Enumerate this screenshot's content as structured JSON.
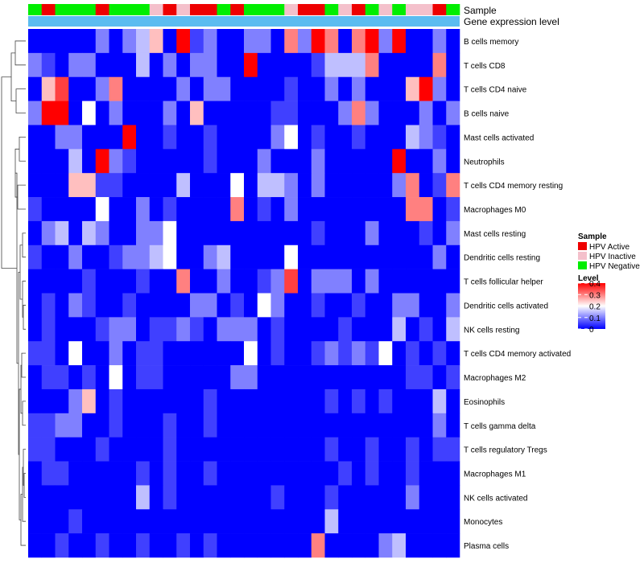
{
  "chart_data": {
    "type": "heatmap",
    "title": "",
    "annotation_labels": {
      "top": "Sample",
      "bottom": "Gene expression level"
    },
    "rows": [
      "B cells memory",
      "T cells CD8",
      "T cells CD4 naive",
      "B cells naive",
      "Mast cells activated",
      "Neutrophils",
      "T cells CD4 memory resting",
      "Macrophages M0",
      "Mast cells resting",
      "Dendritic cells resting",
      "T cells follicular helper",
      "Dendritic cells activated",
      "NK cells resting",
      "T cells CD4 memory activated",
      "Macrophages M2",
      "Eosinophils",
      "T cells gamma delta",
      "T cells regulatory  Tregs",
      "Macrophages M1",
      "NK cells activated",
      "Monocytes",
      "Plasma cells"
    ],
    "sample_groups": [
      "Negative",
      "Active",
      "Negative",
      "Negative",
      "Negative",
      "Active",
      "Negative",
      "Negative",
      "Negative",
      "Inactive",
      "Active",
      "Inactive",
      "Active",
      "Active",
      "Negative",
      "Active",
      "Negative",
      "Negative",
      "Negative",
      "Inactive",
      "Active",
      "Active",
      "Negative",
      "Inactive",
      "Active",
      "Negative",
      "Inactive",
      "Negative",
      "Inactive",
      "Inactive",
      "Active",
      "Negative"
    ],
    "group_colors": {
      "Active": "#ee0000",
      "Inactive": "#f4c0cb",
      "Negative": "#00ee00"
    },
    "expression_bar_color": "#5bbcf0",
    "values": [
      [
        0,
        0,
        0,
        0,
        0,
        0.1,
        0,
        0.1,
        0.15,
        0.25,
        0,
        0.4,
        0.05,
        0.1,
        0,
        0,
        0.1,
        0.1,
        0,
        0.3,
        0.1,
        0.4,
        0.3,
        0,
        0.3,
        0.4,
        0.1,
        0.4,
        0,
        0,
        0.1,
        0
      ],
      [
        0.1,
        0.05,
        0,
        0.1,
        0.1,
        0,
        0,
        0,
        0.15,
        0,
        0.1,
        0,
        0.1,
        0.1,
        0,
        0,
        0.4,
        0,
        0,
        0,
        0,
        0.05,
        0.15,
        0.15,
        0.15,
        0.3,
        0,
        0,
        0,
        0,
        0.3,
        0
      ],
      [
        0,
        0.25,
        0.35,
        0,
        0,
        0.1,
        0.3,
        0,
        0,
        0,
        0,
        0.1,
        0,
        0.1,
        0.1,
        0,
        0,
        0,
        0,
        0.05,
        0,
        0,
        0.1,
        0,
        0.1,
        0,
        0,
        0,
        0.25,
        0.4,
        0.1,
        0
      ],
      [
        0.1,
        0.4,
        0.4,
        0,
        0.2,
        0,
        0.1,
        0,
        0,
        0,
        0.1,
        0,
        0.25,
        0,
        0,
        0,
        0,
        0,
        0.05,
        0.05,
        0,
        0,
        0,
        0.1,
        0.3,
        0.1,
        0,
        0,
        0,
        0.1,
        0,
        0.1
      ],
      [
        0,
        0,
        0.1,
        0.1,
        0,
        0,
        0,
        0.4,
        0,
        0,
        0.05,
        0,
        0,
        0.05,
        0,
        0,
        0,
        0,
        0.1,
        0.2,
        0,
        0.05,
        0,
        0,
        0.05,
        0,
        0,
        0,
        0.15,
        0.1,
        0.05,
        0
      ],
      [
        0,
        0,
        0,
        0.15,
        0,
        0.4,
        0.1,
        0.05,
        0,
        0,
        0,
        0,
        0,
        0.05,
        0,
        0,
        0,
        0.1,
        0,
        0,
        0,
        0.1,
        0,
        0,
        0,
        0,
        0,
        0.4,
        0,
        0,
        0.1,
        0
      ],
      [
        0,
        0,
        0,
        0.25,
        0.25,
        0.05,
        0.05,
        0,
        0,
        0,
        0,
        0.15,
        0,
        0,
        0,
        0.2,
        0,
        0.15,
        0.15,
        0.1,
        0,
        0.1,
        0,
        0,
        0,
        0,
        0,
        0.1,
        0.3,
        0,
        0.05,
        0.3
      ],
      [
        0.05,
        0,
        0,
        0,
        0,
        0.2,
        0,
        0,
        0.1,
        0,
        0.05,
        0,
        0,
        0,
        0,
        0.3,
        0,
        0.05,
        0,
        0.1,
        0,
        0,
        0,
        0,
        0,
        0,
        0,
        0,
        0.3,
        0.3,
        0,
        0.05
      ],
      [
        0,
        0.1,
        0.15,
        0,
        0.15,
        0.1,
        0,
        0,
        0.1,
        0.1,
        0.2,
        0,
        0,
        0,
        0,
        0,
        0,
        0,
        0,
        0,
        0,
        0.05,
        0,
        0,
        0,
        0.1,
        0,
        0,
        0,
        0.05,
        0,
        0.1
      ],
      [
        0.05,
        0,
        0,
        0.1,
        0,
        0,
        0.05,
        0.1,
        0.1,
        0.15,
        0.2,
        0,
        0,
        0.1,
        0.15,
        0,
        0,
        0,
        0,
        0.2,
        0,
        0,
        0,
        0,
        0,
        0,
        0,
        0,
        0,
        0,
        0.1,
        0
      ],
      [
        0,
        0,
        0,
        0,
        0.05,
        0,
        0,
        0,
        0.05,
        0,
        0,
        0.3,
        0,
        0,
        0.1,
        0,
        0,
        0.05,
        0.1,
        0.35,
        0,
        0.1,
        0.1,
        0.1,
        0,
        0.1,
        0,
        0,
        0,
        0,
        0,
        0
      ],
      [
        0,
        0.05,
        0,
        0.1,
        0.05,
        0,
        0,
        0.05,
        0,
        0,
        0,
        0,
        0.1,
        0.1,
        0,
        0.05,
        0,
        0.2,
        0.1,
        0,
        0,
        0.05,
        0,
        0,
        0.05,
        0,
        0,
        0.1,
        0.1,
        0,
        0,
        0.1
      ],
      [
        0,
        0.05,
        0,
        0,
        0,
        0.05,
        0.1,
        0.1,
        0,
        0.05,
        0.05,
        0.1,
        0.05,
        0,
        0.1,
        0.1,
        0.1,
        0,
        0.05,
        0,
        0,
        0,
        0,
        0.05,
        0,
        0,
        0,
        0.15,
        0,
        0.05,
        0,
        0.15
      ],
      [
        0.05,
        0.05,
        0,
        0.2,
        0,
        0,
        0.1,
        0,
        0.05,
        0.05,
        0,
        0,
        0,
        0,
        0,
        0,
        0.2,
        0,
        0.05,
        0,
        0,
        0.05,
        0.1,
        0.05,
        0.1,
        0.05,
        0.2,
        0,
        0.05,
        0,
        0.05,
        0
      ],
      [
        0,
        0.05,
        0.05,
        0,
        0.05,
        0,
        0.2,
        0,
        0.05,
        0.05,
        0,
        0,
        0,
        0,
        0,
        0.1,
        0.1,
        0,
        0,
        0,
        0,
        0,
        0,
        0,
        0,
        0,
        0,
        0,
        0.05,
        0.05,
        0,
        0.05
      ],
      [
        0,
        0,
        0,
        0.1,
        0.25,
        0,
        0.05,
        0,
        0,
        0,
        0,
        0,
        0,
        0.05,
        0,
        0,
        0,
        0,
        0,
        0,
        0,
        0,
        0.05,
        0,
        0.05,
        0,
        0.05,
        0,
        0,
        0,
        0.15,
        0
      ],
      [
        0.05,
        0.05,
        0.1,
        0.1,
        0,
        0,
        0.05,
        0,
        0,
        0,
        0.05,
        0,
        0,
        0.05,
        0,
        0,
        0,
        0,
        0,
        0,
        0,
        0,
        0,
        0,
        0,
        0,
        0,
        0,
        0,
        0,
        0.1,
        0
      ],
      [
        0.05,
        0.05,
        0,
        0,
        0,
        0.05,
        0,
        0,
        0,
        0,
        0.05,
        0,
        0,
        0,
        0,
        0,
        0,
        0,
        0,
        0,
        0,
        0,
        0.05,
        0,
        0,
        0.05,
        0,
        0,
        0.05,
        0,
        0.05,
        0.05
      ],
      [
        0,
        0.05,
        0.05,
        0,
        0,
        0,
        0,
        0,
        0.05,
        0,
        0.05,
        0,
        0,
        0.05,
        0,
        0,
        0,
        0,
        0,
        0,
        0,
        0,
        0,
        0.05,
        0,
        0.05,
        0,
        0,
        0.05,
        0,
        0,
        0
      ],
      [
        0,
        0,
        0,
        0,
        0,
        0,
        0,
        0,
        0.15,
        0,
        0.05,
        0,
        0,
        0,
        0,
        0,
        0,
        0,
        0.05,
        0,
        0,
        0,
        0.05,
        0,
        0,
        0,
        0,
        0,
        0.1,
        0,
        0,
        0
      ],
      [
        0,
        0,
        0,
        0.05,
        0,
        0,
        0,
        0,
        0,
        0,
        0,
        0,
        0,
        0,
        0,
        0,
        0,
        0,
        0,
        0,
        0,
        0,
        0.15,
        0,
        0,
        0,
        0,
        0,
        0,
        0,
        0,
        0
      ],
      [
        0,
        0,
        0.05,
        0,
        0,
        0.05,
        0,
        0,
        0.05,
        0,
        0,
        0.05,
        0,
        0.05,
        0,
        0,
        0,
        0,
        0,
        0,
        0,
        0.3,
        0,
        0,
        0,
        0,
        0.1,
        0.15,
        0,
        0,
        0,
        0
      ]
    ],
    "legend_sample": {
      "title": "Sample",
      "items": [
        {
          "label": "HPV Active",
          "color": "#ee0000"
        },
        {
          "label": "HPV Inactive",
          "color": "#f4c0cb"
        },
        {
          "label": "HPV Negative",
          "color": "#00ee00"
        }
      ]
    },
    "legend_level": {
      "title": "Level",
      "ticks": [
        {
          "value": 0.4,
          "label": "0.4"
        },
        {
          "value": 0.3,
          "label": "0.3"
        },
        {
          "value": 0.2,
          "label": "0.2"
        },
        {
          "value": 0.1,
          "label": "0.1"
        },
        {
          "value": 0,
          "label": "0"
        }
      ],
      "range": [
        0,
        0.4
      ]
    },
    "color_scale": {
      "low": "#0000ff",
      "mid": "#ffffff",
      "high": "#ff0000",
      "midpoint": 0.2
    }
  }
}
